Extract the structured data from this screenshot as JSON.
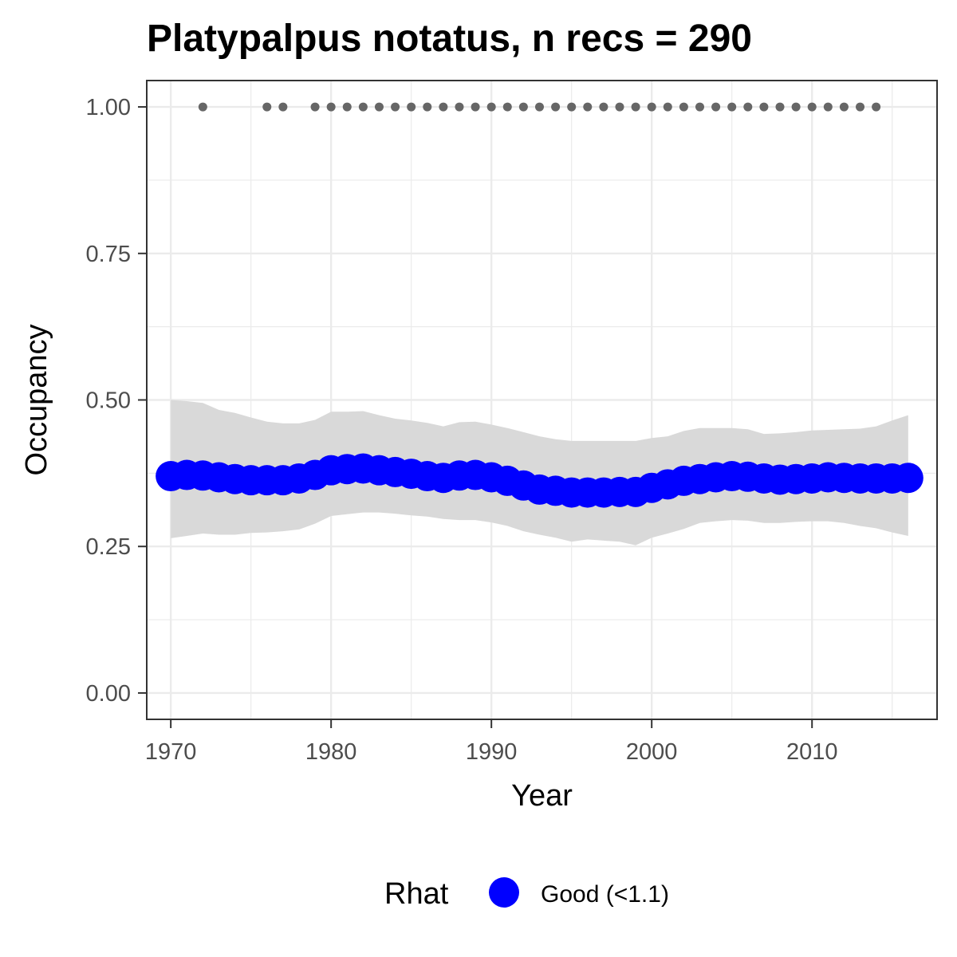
{
  "chart_data": {
    "type": "line",
    "title": "Platypalpus notatus, n recs = 290",
    "xlabel": "Year",
    "ylabel": "Occupancy",
    "xlim": [
      1968.5,
      2017.8
    ],
    "ylim": [
      -0.045,
      1.045
    ],
    "x_ticks": [
      1970,
      1980,
      1990,
      2000,
      2010
    ],
    "x_tick_labels": [
      "1970",
      "1980",
      "1990",
      "2000",
      "2010"
    ],
    "y_ticks": [
      0,
      0.25,
      0.5,
      0.75,
      1
    ],
    "y_tick_labels": [
      "0.00",
      "0.25",
      "0.50",
      "0.75",
      "1.00"
    ],
    "grid": true,
    "legend": {
      "title": "Rhat",
      "position": "bottom",
      "entries": [
        {
          "label": "Good (<1.1)",
          "color": "#0000ff"
        }
      ]
    },
    "series": [
      {
        "role": "mean occupancy",
        "color": "#0000ff",
        "x": [
          1970,
          1971,
          1972,
          1973,
          1974,
          1975,
          1976,
          1977,
          1978,
          1979,
          1980,
          1981,
          1982,
          1983,
          1984,
          1985,
          1986,
          1987,
          1988,
          1989,
          1990,
          1991,
          1992,
          1993,
          1994,
          1995,
          1996,
          1997,
          1998,
          1999,
          2000,
          2001,
          2002,
          2003,
          2004,
          2005,
          2006,
          2007,
          2008,
          2009,
          2010,
          2011,
          2012,
          2013,
          2014,
          2015,
          2016
        ],
        "y": [
          0.37,
          0.372,
          0.371,
          0.368,
          0.365,
          0.363,
          0.363,
          0.363,
          0.366,
          0.372,
          0.38,
          0.382,
          0.383,
          0.38,
          0.377,
          0.374,
          0.37,
          0.367,
          0.371,
          0.372,
          0.368,
          0.362,
          0.354,
          0.347,
          0.345,
          0.342,
          0.342,
          0.342,
          0.343,
          0.343,
          0.35,
          0.356,
          0.362,
          0.365,
          0.368,
          0.37,
          0.369,
          0.366,
          0.364,
          0.365,
          0.366,
          0.368,
          0.367,
          0.366,
          0.366,
          0.366,
          0.367
        ],
        "lower": [
          0.264,
          0.268,
          0.272,
          0.27,
          0.27,
          0.273,
          0.274,
          0.276,
          0.279,
          0.289,
          0.302,
          0.305,
          0.308,
          0.308,
          0.306,
          0.303,
          0.301,
          0.297,
          0.295,
          0.295,
          0.291,
          0.285,
          0.276,
          0.27,
          0.265,
          0.258,
          0.262,
          0.26,
          0.258,
          0.252,
          0.265,
          0.272,
          0.28,
          0.29,
          0.293,
          0.295,
          0.294,
          0.29,
          0.29,
          0.292,
          0.293,
          0.293,
          0.29,
          0.285,
          0.281,
          0.274,
          0.268
        ],
        "upper": [
          0.5,
          0.498,
          0.495,
          0.483,
          0.478,
          0.47,
          0.463,
          0.46,
          0.46,
          0.466,
          0.48,
          0.48,
          0.481,
          0.474,
          0.468,
          0.465,
          0.461,
          0.455,
          0.462,
          0.463,
          0.458,
          0.452,
          0.445,
          0.438,
          0.433,
          0.43,
          0.43,
          0.43,
          0.43,
          0.43,
          0.435,
          0.438,
          0.447,
          0.452,
          0.452,
          0.452,
          0.45,
          0.442,
          0.443,
          0.445,
          0.448,
          0.449,
          0.45,
          0.451,
          0.455,
          0.465,
          0.474
        ]
      },
      {
        "role": "years with records",
        "color": "#666666",
        "x": [
          1972,
          1976,
          1977,
          1979,
          1980,
          1981,
          1982,
          1983,
          1984,
          1985,
          1986,
          1987,
          1988,
          1989,
          1990,
          1991,
          1992,
          1993,
          1994,
          1995,
          1996,
          1997,
          1998,
          1999,
          2000,
          2001,
          2002,
          2003,
          2004,
          2005,
          2006,
          2007,
          2008,
          2009,
          2010,
          2011,
          2012,
          2013,
          2014
        ],
        "y": [
          1,
          1,
          1,
          1,
          1,
          1,
          1,
          1,
          1,
          1,
          1,
          1,
          1,
          1,
          1,
          1,
          1,
          1,
          1,
          1,
          1,
          1,
          1,
          1,
          1,
          1,
          1,
          1,
          1,
          1,
          1,
          1,
          1,
          1,
          1,
          1,
          1,
          1,
          1
        ]
      }
    ],
    "colors": {
      "band": "#d9d9d9",
      "panel_border": "#333333",
      "grid": "#ebebeb"
    }
  }
}
